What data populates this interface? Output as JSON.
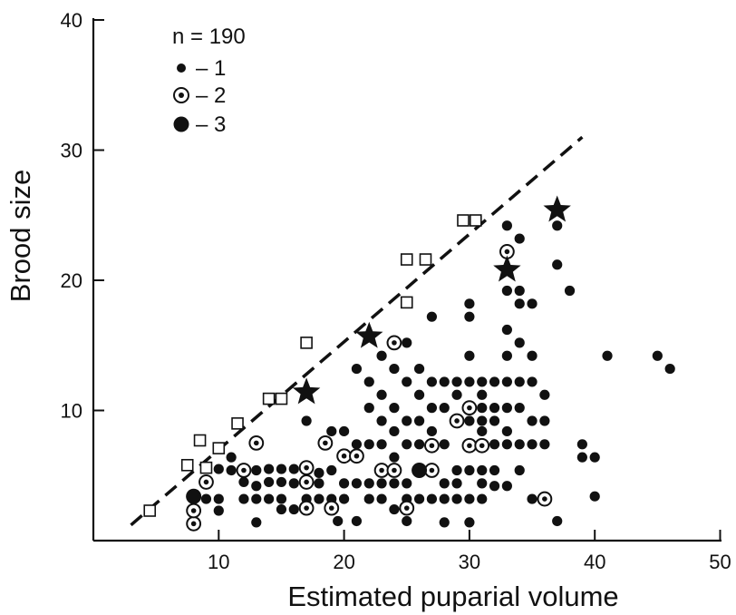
{
  "chart_data": {
    "type": "scatter",
    "xlabel": "Estimated puparial volume",
    "ylabel": "Brood size",
    "xlim": [
      0,
      50
    ],
    "ylim": [
      0,
      40
    ],
    "xticks": [
      "10",
      "20",
      "30",
      "40",
      "50"
    ],
    "yticks": [
      "10",
      "20",
      "30",
      "40"
    ],
    "grid": false,
    "legend": {
      "placement": "top-left",
      "title": "n = 190",
      "entries": [
        "– 1",
        "– 2",
        "– 3"
      ]
    },
    "series": [
      {
        "name": "– 1",
        "marker": "small-filled-circle",
        "points": [
          [
            9,
            3.2
          ],
          [
            10,
            5.5
          ],
          [
            10,
            3.2
          ],
          [
            10,
            2.3
          ],
          [
            11,
            6.4
          ],
          [
            11,
            5.4
          ],
          [
            12,
            3.2
          ],
          [
            12,
            4.5
          ],
          [
            13,
            5.4
          ],
          [
            13,
            4.2
          ],
          [
            13,
            3.2
          ],
          [
            13,
            1.4
          ],
          [
            14,
            5.5
          ],
          [
            14,
            4.5
          ],
          [
            14,
            3.2
          ],
          [
            15,
            5.5
          ],
          [
            15,
            4.5
          ],
          [
            15,
            3.2
          ],
          [
            15,
            2.4
          ],
          [
            16,
            5.5
          ],
          [
            16,
            4.4
          ],
          [
            16,
            2.4
          ],
          [
            17,
            9.2
          ],
          [
            17,
            5.5
          ],
          [
            17,
            3.2
          ],
          [
            18,
            5.2
          ],
          [
            18,
            3.2
          ],
          [
            18,
            4.4
          ],
          [
            19,
            8.4
          ],
          [
            19,
            5.4
          ],
          [
            19,
            3.2
          ],
          [
            19.5,
            1.5
          ],
          [
            20,
            8.4
          ],
          [
            20,
            6.6
          ],
          [
            20,
            4.4
          ],
          [
            20,
            3.2
          ],
          [
            21,
            13.2
          ],
          [
            21,
            7.4
          ],
          [
            21,
            4.4
          ],
          [
            21,
            1.5
          ],
          [
            22,
            12.2
          ],
          [
            22,
            10.2
          ],
          [
            22,
            7.4
          ],
          [
            22,
            4.4
          ],
          [
            22,
            3.2
          ],
          [
            23,
            14.2
          ],
          [
            23,
            11.2
          ],
          [
            23,
            9.2
          ],
          [
            23,
            7.4
          ],
          [
            23,
            4.4
          ],
          [
            23,
            3.2
          ],
          [
            24,
            13.2
          ],
          [
            24,
            10.2
          ],
          [
            24,
            8.4
          ],
          [
            24,
            6.4
          ],
          [
            24,
            4.4
          ],
          [
            24,
            2.4
          ],
          [
            25,
            15.2
          ],
          [
            25,
            12.2
          ],
          [
            25,
            9.2
          ],
          [
            25,
            7.4
          ],
          [
            25,
            4.4
          ],
          [
            25,
            3.2
          ],
          [
            25,
            1.5
          ],
          [
            26,
            13.2
          ],
          [
            26,
            11.2
          ],
          [
            26,
            9.2
          ],
          [
            26,
            5.4
          ],
          [
            26,
            3.2
          ],
          [
            26,
            7.4
          ],
          [
            27,
            17.2
          ],
          [
            27,
            12.2
          ],
          [
            27,
            10.2
          ],
          [
            27,
            8.4
          ],
          [
            27,
            5.4
          ],
          [
            27,
            3.2
          ],
          [
            28,
            12.2
          ],
          [
            28,
            10.2
          ],
          [
            28,
            7.4
          ],
          [
            28,
            4.4
          ],
          [
            28,
            3.2
          ],
          [
            28,
            1.4
          ],
          [
            29,
            12.2
          ],
          [
            29,
            11.2
          ],
          [
            29,
            9.2
          ],
          [
            29,
            5.4
          ],
          [
            29,
            4.4
          ],
          [
            29,
            3.2
          ],
          [
            30,
            18.2
          ],
          [
            30,
            17.2
          ],
          [
            30,
            14.2
          ],
          [
            30,
            12.2
          ],
          [
            30,
            9.2
          ],
          [
            30,
            5.4
          ],
          [
            30,
            3.2
          ],
          [
            30,
            1.4
          ],
          [
            31,
            12.2
          ],
          [
            31,
            11.2
          ],
          [
            31,
            10.2
          ],
          [
            31,
            9.2
          ],
          [
            31,
            8.4
          ],
          [
            31,
            5.4
          ],
          [
            31,
            4.4
          ],
          [
            31,
            3.2
          ],
          [
            32,
            12.2
          ],
          [
            32,
            10.2
          ],
          [
            32,
            9.2
          ],
          [
            32,
            7.4
          ],
          [
            32,
            5.4
          ],
          [
            32,
            4.2
          ],
          [
            33,
            24.2
          ],
          [
            33,
            19.2
          ],
          [
            33,
            16.2
          ],
          [
            33,
            14.2
          ],
          [
            33,
            12.2
          ],
          [
            33,
            10.2
          ],
          [
            33,
            8.4
          ],
          [
            33,
            7.4
          ],
          [
            33,
            4.2
          ],
          [
            34,
            23.2
          ],
          [
            34,
            19.2
          ],
          [
            34,
            18.2
          ],
          [
            34,
            15.2
          ],
          [
            34,
            12.2
          ],
          [
            34,
            10.2
          ],
          [
            34,
            7.4
          ],
          [
            34,
            5.4
          ],
          [
            35,
            18.2
          ],
          [
            35,
            14.2
          ],
          [
            35,
            12.2
          ],
          [
            35,
            9.2
          ],
          [
            35,
            7.4
          ],
          [
            35,
            3.2
          ],
          [
            36,
            11.2
          ],
          [
            36,
            9.2
          ],
          [
            36,
            7.4
          ],
          [
            37,
            24.2
          ],
          [
            37,
            21.2
          ],
          [
            37,
            1.5
          ],
          [
            38,
            19.2
          ],
          [
            39,
            7.4
          ],
          [
            39,
            6.4
          ],
          [
            40,
            6.4
          ],
          [
            40,
            3.4
          ],
          [
            41,
            14.2
          ],
          [
            45,
            14.2
          ],
          [
            46,
            13.2
          ]
        ]
      },
      {
        "name": "– 2",
        "marker": "ringed-circle",
        "points": [
          [
            8,
            1.3
          ],
          [
            8,
            2.3
          ],
          [
            9,
            4.5
          ],
          [
            12,
            5.4
          ],
          [
            13,
            7.5
          ],
          [
            17,
            5.6
          ],
          [
            17,
            4.5
          ],
          [
            17,
            2.5
          ],
          [
            18.5,
            7.5
          ],
          [
            19,
            2.5
          ],
          [
            20,
            6.5
          ],
          [
            21,
            6.5
          ],
          [
            23,
            5.4
          ],
          [
            24,
            15.2
          ],
          [
            24,
            5.4
          ],
          [
            25,
            2.5
          ],
          [
            27,
            7.3
          ],
          [
            27,
            5.4
          ],
          [
            29,
            9.2
          ],
          [
            30,
            10.2
          ],
          [
            30,
            7.3
          ],
          [
            31,
            7.3
          ],
          [
            33,
            22.2
          ],
          [
            36,
            3.2
          ]
        ]
      },
      {
        "name": "– 3",
        "marker": "large-filled-circle",
        "points": [
          [
            8,
            3.4
          ],
          [
            26,
            5.4
          ]
        ]
      },
      {
        "name": "",
        "marker": "open-square",
        "points": [
          [
            4.5,
            2.3
          ],
          [
            7.5,
            5.8
          ],
          [
            8.5,
            7.7
          ],
          [
            9,
            5.6
          ],
          [
            10,
            7.1
          ],
          [
            11.5,
            9
          ],
          [
            14,
            10.9
          ],
          [
            15,
            10.9
          ],
          [
            17,
            15.2
          ],
          [
            25,
            18.3
          ],
          [
            25,
            21.6
          ],
          [
            26.5,
            21.6
          ],
          [
            29.5,
            24.6
          ],
          [
            30.5,
            24.6
          ]
        ]
      },
      {
        "name": "",
        "marker": "star",
        "points": [
          [
            17,
            11.4
          ],
          [
            22,
            15.7
          ],
          [
            33,
            20.8
          ],
          [
            37,
            25.4
          ]
        ]
      }
    ],
    "reference_line": {
      "style": "dashed",
      "points": [
        [
          3,
          1.2
        ],
        [
          39,
          31
        ]
      ]
    }
  }
}
